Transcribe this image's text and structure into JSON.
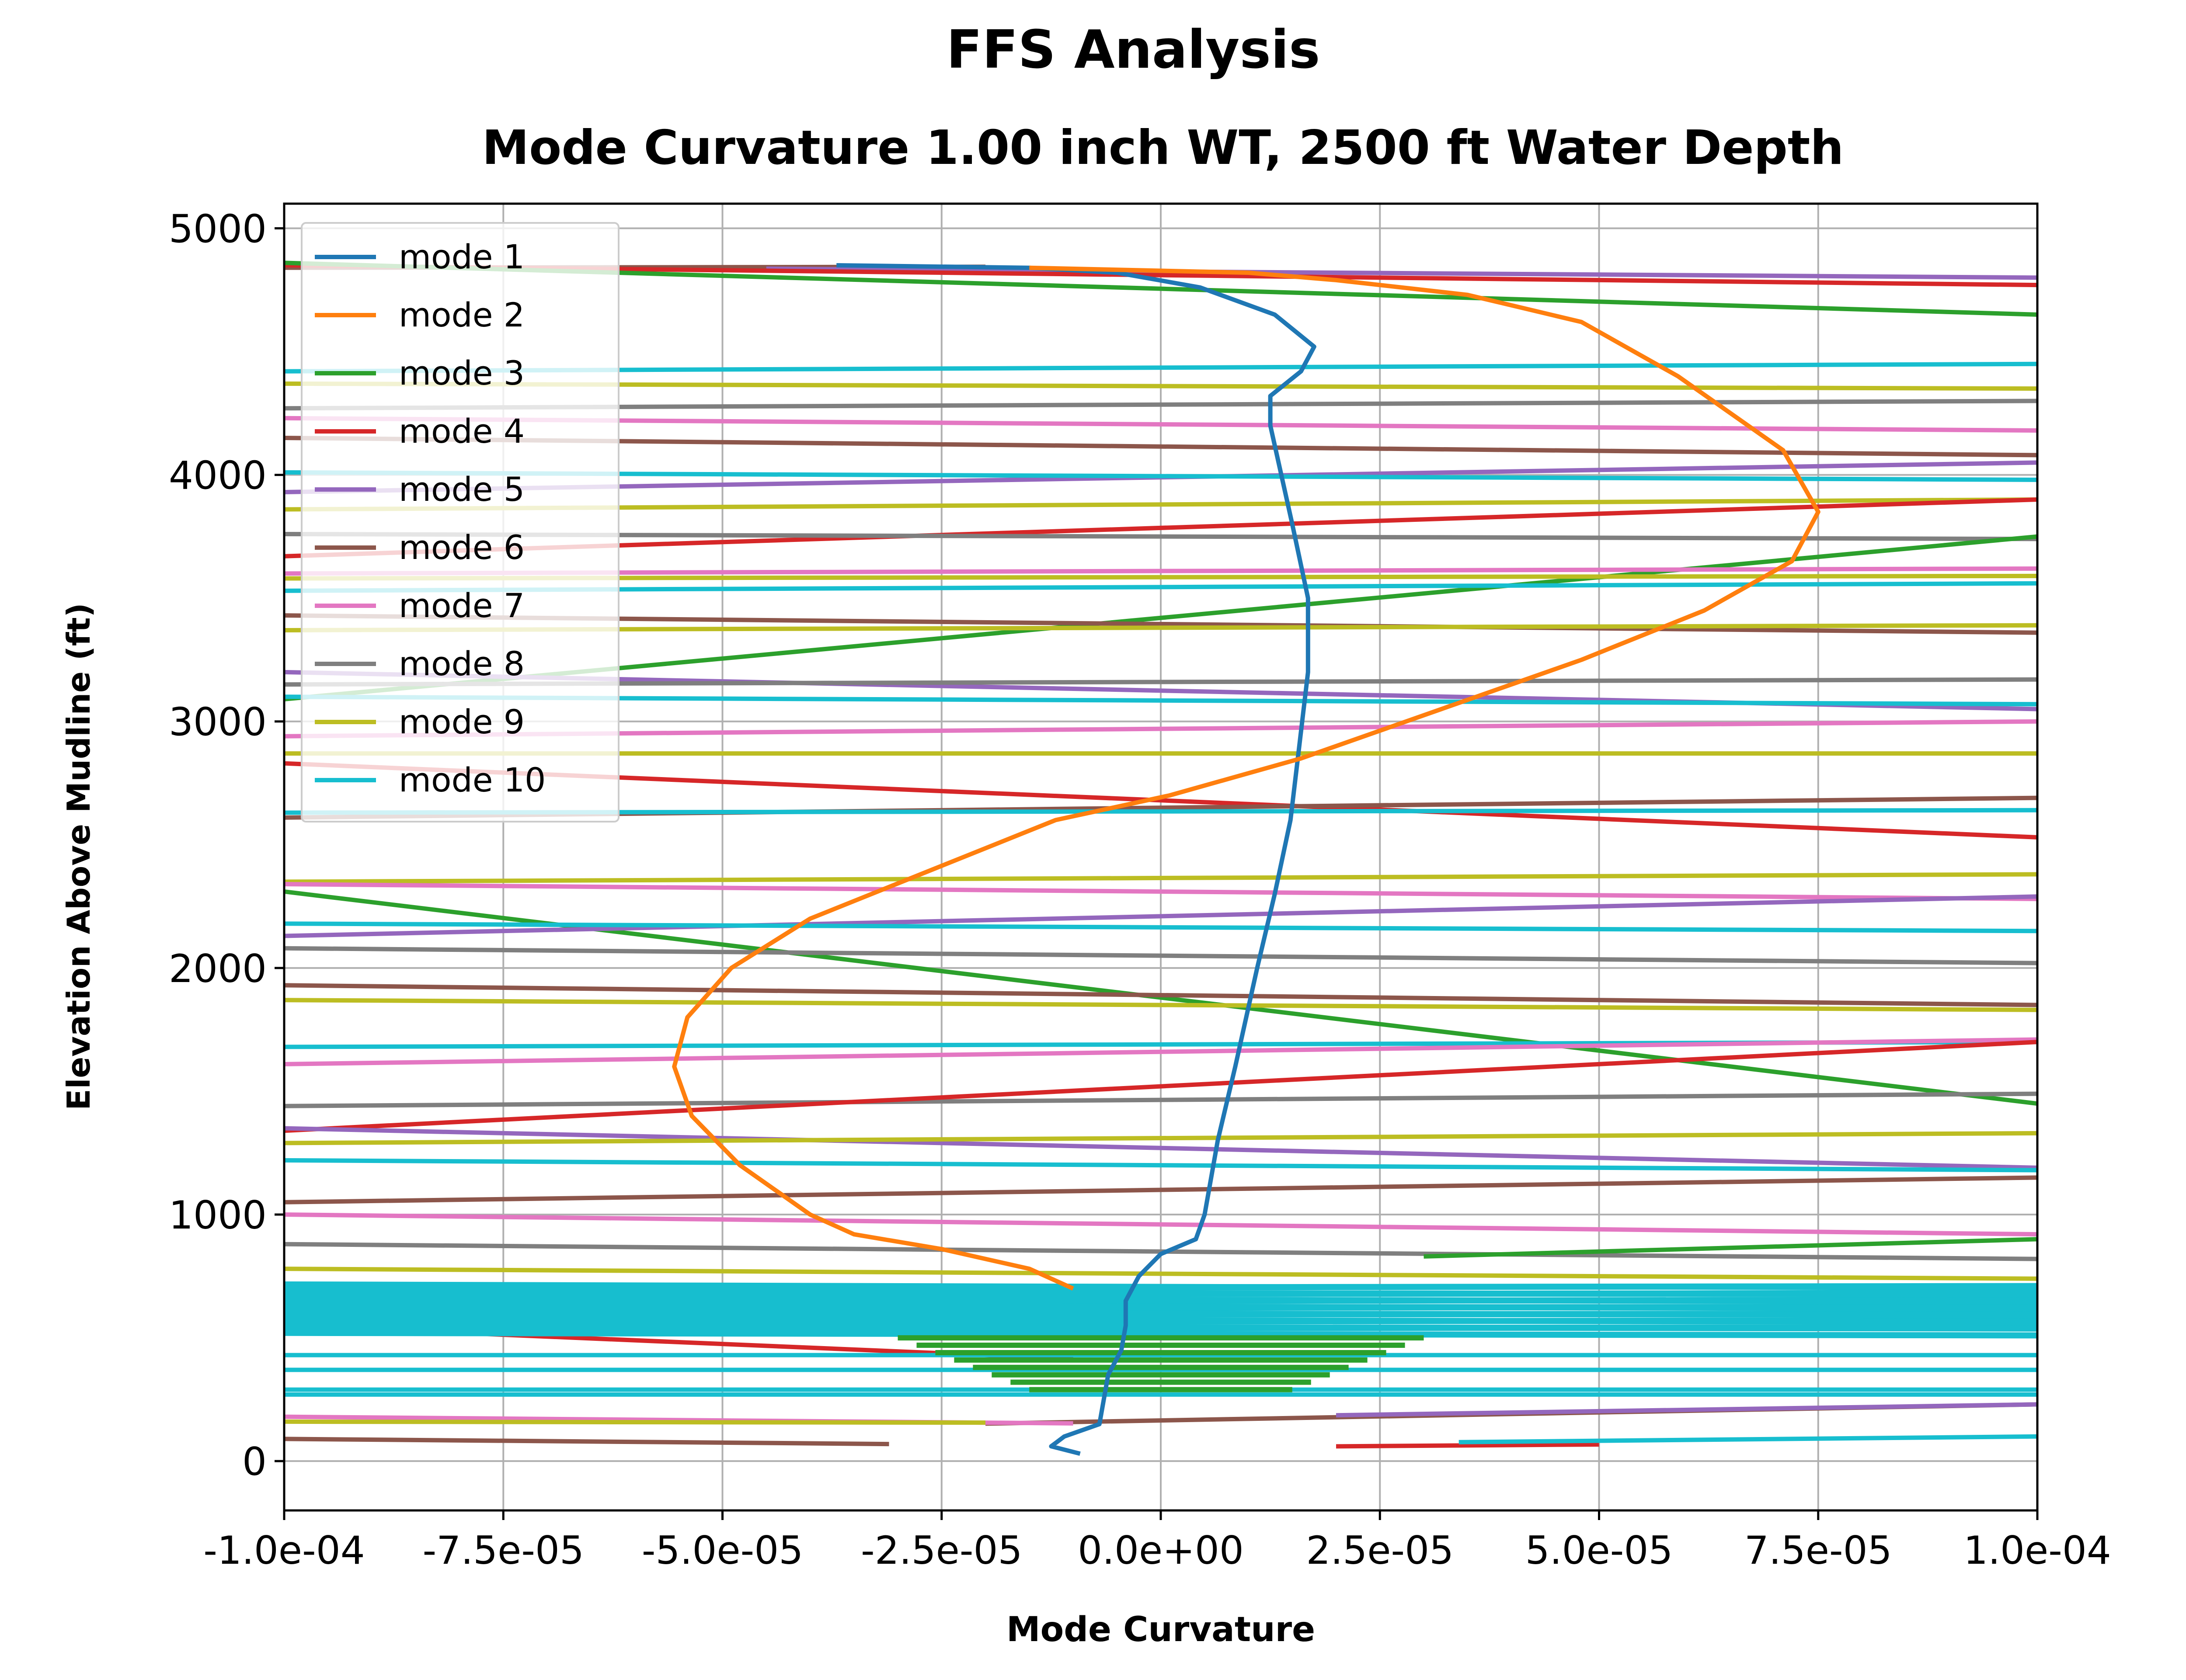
{
  "chart_data": {
    "type": "line",
    "title": "FFS Analysis",
    "subtitle": "Mode Curvature 1.00 inch WT, 2500 ft Water Depth",
    "xlabel": "Mode Curvature",
    "ylabel": "Elevation Above Mudline (ft)",
    "xlim": [
      -0.0001,
      0.0001
    ],
    "ylim": [
      -200,
      5100
    ],
    "xticks": [
      -0.0001,
      -7.5e-05,
      -5e-05,
      -2.5e-05,
      0,
      2.5e-05,
      5e-05,
      7.5e-05,
      0.0001
    ],
    "xtick_labels": [
      "-1.0e-04",
      "-7.5e-05",
      "-5.0e-05",
      "-2.5e-05",
      "0.0e+00",
      "2.5e-05",
      "5.0e-05",
      "7.5e-05",
      "1.0e-04"
    ],
    "yticks": [
      0,
      1000,
      2000,
      3000,
      4000,
      5000
    ],
    "ytick_labels": [
      "0",
      "1000",
      "2000",
      "3000",
      "4000",
      "5000"
    ],
    "grid": true,
    "legend_position": "top-left",
    "series": [
      {
        "name": "mode 1",
        "color": "#1f77b4",
        "points": [
          [
            -9.2e-06,
            30
          ],
          [
            -1.25e-05,
            60
          ],
          [
            -1.1e-05,
            100
          ],
          [
            -7e-06,
            150
          ],
          [
            -6.5e-06,
            250
          ],
          [
            -6e-06,
            350
          ],
          [
            -4.5e-06,
            450
          ],
          [
            -4e-06,
            550
          ],
          [
            -4e-06,
            650
          ],
          [
            -2.5e-06,
            750
          ],
          [
            0,
            840
          ],
          [
            4e-06,
            900
          ],
          [
            5e-06,
            1000
          ],
          [
            6.5e-06,
            1300
          ],
          [
            8.5e-06,
            1600
          ],
          [
            1.1e-05,
            2000
          ],
          [
            1.3e-05,
            2300
          ],
          [
            1.48e-05,
            2600
          ],
          [
            1.58e-05,
            2900
          ],
          [
            1.68e-05,
            3200
          ],
          [
            1.68e-05,
            3500
          ],
          [
            1.5e-05,
            3800
          ],
          [
            1.25e-05,
            4200
          ],
          [
            1.25e-05,
            4320
          ],
          [
            1.6e-05,
            4420
          ],
          [
            1.75e-05,
            4520
          ],
          [
            1.3e-05,
            4650
          ],
          [
            4.5e-06,
            4760
          ],
          [
            -5e-06,
            4820
          ],
          [
            -1.5e-05,
            4840
          ],
          [
            -3.7e-05,
            4850
          ]
        ]
      },
      {
        "name": "mode 2",
        "color": "#ff7f0e",
        "points": [
          [
            -1e-05,
            700
          ],
          [
            -1.5e-05,
            780
          ],
          [
            -2.5e-05,
            860
          ],
          [
            -3.5e-05,
            920
          ],
          [
            -4e-05,
            1000
          ],
          [
            -4.8e-05,
            1200
          ],
          [
            -5.35e-05,
            1400
          ],
          [
            -5.55e-05,
            1600
          ],
          [
            -5.4e-05,
            1800
          ],
          [
            -4.9e-05,
            2000
          ],
          [
            -4e-05,
            2200
          ],
          [
            -2.6e-05,
            2400
          ],
          [
            -1.2e-05,
            2600
          ],
          [
            1e-06,
            2700
          ],
          [
            1.6e-05,
            2850
          ],
          [
            3.2e-05,
            3050
          ],
          [
            4.8e-05,
            3250
          ],
          [
            6.2e-05,
            3450
          ],
          [
            7.2e-05,
            3650
          ],
          [
            7.5e-05,
            3850
          ],
          [
            7.1e-05,
            4100
          ],
          [
            5.9e-05,
            4400
          ],
          [
            4.8e-05,
            4620
          ],
          [
            3.5e-05,
            4730
          ],
          [
            2e-05,
            4790
          ],
          [
            1e-05,
            4820
          ],
          [
            -1.5e-05,
            4840
          ]
        ]
      }
    ],
    "legend": [
      {
        "label": "mode 1",
        "color": "#1f77b4"
      },
      {
        "label": "mode 2",
        "color": "#ff7f0e"
      },
      {
        "label": "mode 3",
        "color": "#2ca02c"
      },
      {
        "label": "mode 4",
        "color": "#d62728"
      },
      {
        "label": "mode 5",
        "color": "#9467bd"
      },
      {
        "label": "mode 6",
        "color": "#8c564b"
      },
      {
        "label": "mode 7",
        "color": "#e377c2"
      },
      {
        "label": "mode 8",
        "color": "#7f7f7f"
      },
      {
        "label": "mode 9",
        "color": "#bcbd22"
      },
      {
        "label": "mode 10",
        "color": "#17becf"
      }
    ],
    "crossing_lines": [
      {
        "color": "#8c564b",
        "y_left": 4840,
        "y_right": 4850,
        "x0": -0.0001,
        "x1": -2e-05
      },
      {
        "color": "#9467bd",
        "y_left": 4850,
        "y_right": 4800,
        "x0": -4.5e-05,
        "x1": 0.0001
      },
      {
        "color": "#d62728",
        "y_left": 4850,
        "y_right": 4770
      },
      {
        "color": "#2ca02c",
        "y_left": 4860,
        "y_right": 4650
      },
      {
        "color": "#17becf",
        "y_left": 4420,
        "y_right": 4450
      },
      {
        "color": "#bcbd22",
        "y_left": 4370,
        "y_right": 4350
      },
      {
        "color": "#7f7f7f",
        "y_left": 4270,
        "y_right": 4300
      },
      {
        "color": "#e377c2",
        "y_left": 4230,
        "y_right": 4180
      },
      {
        "color": "#8c564b",
        "y_left": 4150,
        "y_right": 4080
      },
      {
        "color": "#9467bd",
        "y_left": 3930,
        "y_right": 4050
      },
      {
        "color": "#17becf",
        "y_left": 4010,
        "y_right": 3980
      },
      {
        "color": "#bcbd22",
        "y_left": 3860,
        "y_right": 3900
      },
      {
        "color": "#d62728",
        "y_left": 3670,
        "y_right": 3900
      },
      {
        "color": "#7f7f7f",
        "y_left": 3760,
        "y_right": 3740
      },
      {
        "color": "#2ca02c",
        "y_left": 3090,
        "y_right": 3750
      },
      {
        "color": "#e377c2",
        "y_left": 3600,
        "y_right": 3620
      },
      {
        "color": "#bcbd22",
        "y_left": 3580,
        "y_right": 3590
      },
      {
        "color": "#17becf",
        "y_left": 3530,
        "y_right": 3560
      },
      {
        "color": "#8c564b",
        "y_left": 3430,
        "y_right": 3360
      },
      {
        "color": "#bcbd22",
        "y_left": 3370,
        "y_right": 3390
      },
      {
        "color": "#9467bd",
        "y_left": 3200,
        "y_right": 3050
      },
      {
        "color": "#7f7f7f",
        "y_left": 3150,
        "y_right": 3170
      },
      {
        "color": "#17becf",
        "y_left": 3100,
        "y_right": 3070
      },
      {
        "color": "#e377c2",
        "y_left": 2940,
        "y_right": 3000
      },
      {
        "color": "#bcbd22",
        "y_left": 2870,
        "y_right": 2870
      },
      {
        "color": "#d62728",
        "y_left": 2830,
        "y_right": 2530
      },
      {
        "color": "#8c564b",
        "y_left": 2610,
        "y_right": 2690
      },
      {
        "color": "#17becf",
        "y_left": 2630,
        "y_right": 2640
      },
      {
        "color": "#bcbd22",
        "y_left": 2350,
        "y_right": 2380
      },
      {
        "color": "#e377c2",
        "y_left": 2340,
        "y_right": 2280
      },
      {
        "color": "#2ca02c",
        "y_left": 2310,
        "y_right": 1450
      },
      {
        "color": "#9467bd",
        "y_left": 2130,
        "y_right": 2290
      },
      {
        "color": "#17becf",
        "y_left": 2180,
        "y_right": 2150
      },
      {
        "color": "#7f7f7f",
        "y_left": 2080,
        "y_right": 2020
      },
      {
        "color": "#8c564b",
        "y_left": 1930,
        "y_right": 1850
      },
      {
        "color": "#bcbd22",
        "y_left": 1870,
        "y_right": 1830
      },
      {
        "color": "#17becf",
        "y_left": 1680,
        "y_right": 1700
      },
      {
        "color": "#e377c2",
        "y_left": 1610,
        "y_right": 1710
      },
      {
        "color": "#7f7f7f",
        "y_left": 1440,
        "y_right": 1490
      },
      {
        "color": "#d62728",
        "y_left": 1340,
        "y_right": 1700
      },
      {
        "color": "#9467bd",
        "y_left": 1350,
        "y_right": 1190
      },
      {
        "color": "#bcbd22",
        "y_left": 1290,
        "y_right": 1330
      },
      {
        "color": "#17becf",
        "y_left": 1220,
        "y_right": 1180
      },
      {
        "color": "#8c564b",
        "y_left": 1050,
        "y_right": 1150
      },
      {
        "color": "#e377c2",
        "y_left": 1000,
        "y_right": 920
      },
      {
        "color": "#7f7f7f",
        "y_left": 880,
        "y_right": 820
      },
      {
        "color": "#2ca02c",
        "y_left": 700,
        "y_right": 900,
        "x0": 3e-05,
        "x1": 0.0001
      },
      {
        "color": "#bcbd22",
        "y_left": 780,
        "y_right": 740
      },
      {
        "color": "#17becf",
        "y_left": 720,
        "y_right": 700
      },
      {
        "color": "#d62728",
        "y_left": 550,
        "y_right": 250,
        "x0": -0.0001,
        "x1": -1e-05
      },
      {
        "color": "#17becf",
        "y_left": 430,
        "y_right": 430
      },
      {
        "color": "#17becf",
        "y_left": 370,
        "y_right": 370
      },
      {
        "color": "#17becf",
        "y_left": 290,
        "y_right": 290
      },
      {
        "color": "#17becf",
        "y_left": 270,
        "y_right": 270
      },
      {
        "color": "#8c564b",
        "y_left": 100,
        "y_right": 230,
        "x0": -2e-05,
        "x1": 0.0001
      },
      {
        "color": "#9467bd",
        "y_left": 120,
        "y_right": 230,
        "x0": 2e-05,
        "x1": 0.0001
      },
      {
        "color": "#e377c2",
        "y_left": 180,
        "y_right": 120,
        "x0": -0.0001,
        "x1": -1e-05
      },
      {
        "color": "#bcbd22",
        "y_left": 160,
        "y_right": 150,
        "x0": -0.0001,
        "x1": -2e-05
      },
      {
        "color": "#8c564b",
        "y_left": 90,
        "y_right": 30,
        "x0": -0.0001,
        "x1": -3.1e-05
      },
      {
        "color": "#d62728",
        "y_left": 30,
        "y_right": 80,
        "x0": 2e-05,
        "x1": 5e-05
      },
      {
        "color": "#17becf",
        "y_left": 30,
        "y_right": 100,
        "x0": 3.4e-05,
        "x1": 0.0001
      }
    ],
    "dense_band": {
      "color": "#17becf",
      "y_from": 520,
      "y_to": 700,
      "count": 14
    },
    "green_cluster": {
      "color": "#2ca02c",
      "y_from": 290,
      "y_to": 500,
      "count": 8
    }
  }
}
